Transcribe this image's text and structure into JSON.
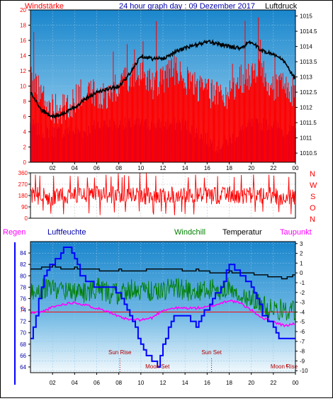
{
  "header": {
    "left_label": "Windstärke",
    "center_label": "24 hour graph day : 09 Dezember 2017",
    "right_label": "Luftdruck"
  },
  "panel2": {
    "direction_labels": [
      "N",
      "W",
      "S",
      "O",
      "N"
    ]
  },
  "panel3": {
    "labels": {
      "regen": "Regen",
      "luftfeuchte": "Luftfeuchte",
      "windchill": "Windchill",
      "temperatur": "Temperatur",
      "taupunkt": "Taupunkt",
      "regen_zero": "0"
    },
    "events": [
      {
        "label": "Sun Rise",
        "hour": 8.1
      },
      {
        "label": "Moon Set",
        "hour": 11.5
      },
      {
        "label": "Sun Set",
        "hour": 16.4
      },
      {
        "label": "Moon Rise",
        "hour": 23.2
      }
    ]
  },
  "colors": {
    "wind": "#ff0000",
    "gust_bg": "#0000ff",
    "pressure": "#000000",
    "humidity": "#0000ff",
    "windchill": "#008000",
    "temperature": "#000000",
    "dewpoint": "#ff00ff",
    "events": "#b00000",
    "panel_top": "#1e8bd0",
    "panel_bottom": "#eaf5fc"
  },
  "chart_data": [
    {
      "type": "bar",
      "title": "24 hour graph day : 09 Dezember 2017",
      "xlabel": "",
      "ylabel": "Windstärke",
      "x_ticks": [
        "02",
        "04",
        "06",
        "08",
        "10",
        "12",
        "14",
        "16",
        "18",
        "20",
        "22",
        "00"
      ],
      "y_ticks_left": [
        0,
        2,
        4,
        6,
        8,
        10,
        12,
        14,
        16,
        18,
        20
      ],
      "ylim_left": [
        0,
        20
      ],
      "y_ticks_right": [
        1010.5,
        1011,
        1011.5,
        1012,
        1012.5,
        1013,
        1013.5,
        1014,
        1014.5,
        1015
      ],
      "ylim_right": [
        1010.2,
        1015.2
      ],
      "series": [
        {
          "name": "Windstärke",
          "axis": "left",
          "x": [
            0,
            1,
            2,
            3,
            4,
            5,
            6,
            7,
            8,
            9,
            10,
            11,
            12,
            13,
            14,
            15,
            16,
            17,
            18,
            19,
            20,
            21,
            22,
            23,
            24
          ],
          "values": [
            11,
            9,
            7,
            7,
            8,
            10,
            9,
            9,
            10,
            11,
            12,
            10,
            11,
            12,
            11,
            10,
            9,
            9,
            9,
            11,
            11,
            12,
            10,
            10,
            9
          ]
        },
        {
          "name": "Luftdruck",
          "axis": "right",
          "x": [
            0,
            1,
            2,
            3,
            4,
            5,
            6,
            7,
            8,
            9,
            10,
            11,
            12,
            13,
            14,
            15,
            16,
            17,
            18,
            19,
            20,
            21,
            22,
            23,
            24
          ],
          "values": [
            1012.5,
            1011.9,
            1011.7,
            1011.8,
            1012.0,
            1012.3,
            1012.5,
            1012.6,
            1012.7,
            1013.1,
            1013.7,
            1013.6,
            1013.6,
            1013.8,
            1013.95,
            1014.05,
            1014.15,
            1014.1,
            1014.0,
            1013.95,
            1014.15,
            1013.85,
            1013.75,
            1013.5,
            1012.9
          ]
        },
        {
          "name": "Böen",
          "axis": "left",
          "x": [
            0,
            1,
            2,
            3,
            4,
            5,
            6,
            7,
            8,
            9,
            10,
            11,
            12,
            13,
            14,
            15,
            16,
            17,
            18,
            19,
            20,
            21,
            22,
            23,
            24
          ],
          "values": [
            5,
            4,
            4,
            4,
            4,
            4,
            5,
            5,
            5,
            5,
            5,
            5,
            5,
            5,
            5,
            4,
            3,
            2,
            3,
            4,
            5,
            5,
            5,
            4,
            4
          ]
        }
      ]
    },
    {
      "type": "line",
      "title": "",
      "ylabel": "",
      "y_ticks": [
        0,
        90,
        180,
        270,
        360
      ],
      "ylim": [
        0,
        360
      ],
      "series": [
        {
          "name": "Windrichtung",
          "x": [
            0,
            2,
            4,
            6,
            8,
            10,
            12,
            14,
            16,
            18,
            20,
            22,
            24
          ],
          "values": [
            180,
            170,
            185,
            190,
            180,
            175,
            185,
            180,
            175,
            185,
            180,
            175,
            170
          ]
        }
      ]
    },
    {
      "type": "line",
      "title": "",
      "x_ticks": [
        "02",
        "04",
        "06",
        "08",
        "10",
        "12",
        "14",
        "16",
        "18",
        "20",
        "22",
        "00"
      ],
      "y_ticks_left": [
        64,
        66,
        68,
        70,
        72,
        74,
        76,
        78,
        80,
        82,
        84
      ],
      "ylim_left": [
        63,
        86
      ],
      "y_ticks_right": [
        3,
        2,
        1,
        0,
        -1,
        -2,
        -3,
        -4,
        -5,
        -6,
        -7,
        -8,
        -9,
        -10
      ],
      "ylim_right": [
        -10.2,
        3.2
      ],
      "series": [
        {
          "name": "Luftfeuchte",
          "axis": "left",
          "x": [
            0,
            0.5,
            1,
            1.5,
            2,
            2.5,
            3,
            3.5,
            4,
            4.5,
            5,
            6,
            7,
            8,
            9,
            10,
            10.5,
            11,
            11.5,
            12,
            13,
            14,
            14.5,
            15,
            15.5,
            16,
            16.5,
            17,
            17.5,
            18,
            18.5,
            19,
            19.5,
            20,
            20.5,
            21,
            21.5,
            22,
            22.5,
            23,
            23.5,
            24
          ],
          "values": [
            69,
            73,
            78,
            81,
            82,
            83,
            85,
            85,
            83,
            80,
            79,
            78,
            78,
            77,
            73,
            68,
            66,
            65,
            64,
            68,
            73,
            73,
            72,
            71,
            73,
            74,
            76,
            77,
            79,
            82,
            81,
            80,
            79,
            78,
            76,
            73,
            72,
            71,
            69,
            69,
            69,
            69
          ]
        },
        {
          "name": "Temperatur",
          "axis": "right",
          "x": [
            0,
            1,
            2,
            3,
            4,
            5,
            6,
            7,
            8,
            9,
            10,
            11,
            12,
            13,
            14,
            15,
            16,
            17,
            18,
            19,
            20,
            21,
            22,
            23,
            24
          ],
          "values": [
            0.3,
            0.5,
            0.7,
            0.3,
            0.5,
            0.3,
            0.3,
            0.2,
            0.3,
            0.2,
            0.2,
            0.4,
            0.3,
            0.4,
            0.2,
            0.3,
            0.1,
            -0.1,
            0.1,
            0.0,
            -0.1,
            -0.2,
            -0.4,
            -0.6,
            -0.2
          ]
        },
        {
          "name": "Windchill",
          "axis": "right",
          "x": [
            0,
            1,
            2,
            3,
            4,
            5,
            6,
            7,
            8,
            9,
            10,
            11,
            12,
            13,
            14,
            15,
            16,
            17,
            18,
            19,
            20,
            21,
            22,
            23,
            24
          ],
          "values": [
            -2.0,
            -1.6,
            -1.5,
            -1.8,
            -2.0,
            -2.0,
            -1.5,
            -2.0,
            -2.2,
            -1.6,
            -1.8,
            -1.9,
            -1.8,
            -1.4,
            -1.7,
            -2.0,
            -1.6,
            -1.8,
            -1.4,
            -2.4,
            -2.6,
            -3.4,
            -3.6,
            -3.8,
            -4.0
          ]
        },
        {
          "name": "Taupunkt",
          "axis": "right",
          "x": [
            0,
            1,
            2,
            3,
            4,
            5,
            6,
            7,
            8,
            9,
            10,
            11,
            12,
            13,
            14,
            15,
            16,
            17,
            18,
            19,
            20,
            21,
            22,
            23,
            24
          ],
          "values": [
            -4.1,
            -4.0,
            -3.5,
            -3.2,
            -3.0,
            -3.3,
            -3.6,
            -3.9,
            -4.5,
            -4.8,
            -4.8,
            -4.6,
            -3.8,
            -3.6,
            -3.6,
            -3.6,
            -3.5,
            -3.2,
            -2.8,
            -3.1,
            -3.8,
            -4.6,
            -5.0,
            -5.4,
            -5.2
          ]
        },
        {
          "name": "Regen",
          "axis": "right",
          "x": [
            0,
            24
          ],
          "values": [
            -4,
            -4
          ]
        }
      ]
    }
  ]
}
